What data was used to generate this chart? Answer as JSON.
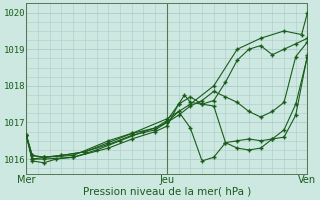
{
  "xlabel": "Pression niveau de la mer( hPa )",
  "bg_color": "#cce8e0",
  "grid_color": "#aacccc",
  "line_color": "#1a5c1a",
  "ylim": [
    1015.6,
    1020.25
  ],
  "xlim": [
    0,
    48
  ],
  "yticks": [
    1016,
    1017,
    1018,
    1019,
    1020
  ],
  "xtick_labels": [
    "Mer",
    "Jeu",
    "Ven"
  ],
  "xtick_positions": [
    0,
    24,
    48
  ],
  "series_waypoints": [
    [
      [
        0,
        1016.65
      ],
      [
        1,
        1016.0
      ],
      [
        3,
        1016.05
      ],
      [
        8,
        1016.1
      ],
      [
        14,
        1016.5
      ],
      [
        18,
        1016.7
      ],
      [
        24,
        1017.1
      ],
      [
        28,
        1017.5
      ],
      [
        32,
        1018.0
      ],
      [
        36,
        1019.0
      ],
      [
        40,
        1019.3
      ],
      [
        44,
        1019.5
      ],
      [
        47,
        1019.4
      ],
      [
        48,
        1020.0
      ]
    ],
    [
      [
        0,
        1016.65
      ],
      [
        1,
        1016.0
      ],
      [
        3,
        1016.0
      ],
      [
        8,
        1016.05
      ],
      [
        14,
        1016.3
      ],
      [
        18,
        1016.55
      ],
      [
        22,
        1016.75
      ],
      [
        24,
        1016.9
      ],
      [
        26,
        1017.5
      ],
      [
        28,
        1017.7
      ],
      [
        30,
        1017.5
      ],
      [
        32,
        1017.6
      ],
      [
        34,
        1018.1
      ],
      [
        36,
        1018.7
      ],
      [
        38,
        1019.0
      ],
      [
        40,
        1019.1
      ],
      [
        42,
        1018.85
      ],
      [
        44,
        1019.0
      ],
      [
        46,
        1019.15
      ],
      [
        48,
        1019.3
      ]
    ],
    [
      [
        0,
        1016.65
      ],
      [
        1,
        1015.95
      ],
      [
        3,
        1015.9
      ],
      [
        5,
        1016.0
      ],
      [
        8,
        1016.05
      ],
      [
        12,
        1016.25
      ],
      [
        16,
        1016.5
      ],
      [
        20,
        1016.75
      ],
      [
        22,
        1016.85
      ],
      [
        24,
        1017.05
      ],
      [
        26,
        1017.5
      ],
      [
        27,
        1017.75
      ],
      [
        28,
        1017.55
      ],
      [
        30,
        1017.5
      ],
      [
        32,
        1017.45
      ],
      [
        34,
        1016.45
      ],
      [
        36,
        1016.3
      ],
      [
        38,
        1016.25
      ],
      [
        40,
        1016.3
      ],
      [
        42,
        1016.55
      ],
      [
        44,
        1016.8
      ],
      [
        46,
        1017.5
      ],
      [
        48,
        1018.8
      ]
    ],
    [
      [
        0,
        1016.65
      ],
      [
        1,
        1016.1
      ],
      [
        3,
        1016.05
      ],
      [
        6,
        1016.1
      ],
      [
        10,
        1016.2
      ],
      [
        14,
        1016.4
      ],
      [
        18,
        1016.65
      ],
      [
        22,
        1016.8
      ],
      [
        24,
        1017.0
      ],
      [
        26,
        1017.3
      ],
      [
        28,
        1016.85
      ],
      [
        30,
        1015.95
      ],
      [
        32,
        1016.05
      ],
      [
        34,
        1016.45
      ],
      [
        36,
        1016.5
      ],
      [
        38,
        1016.55
      ],
      [
        40,
        1016.5
      ],
      [
        42,
        1016.55
      ],
      [
        44,
        1016.6
      ],
      [
        46,
        1017.2
      ],
      [
        48,
        1018.85
      ]
    ],
    [
      [
        0,
        1016.65
      ],
      [
        1,
        1016.1
      ],
      [
        3,
        1016.05
      ],
      [
        6,
        1016.1
      ],
      [
        10,
        1016.2
      ],
      [
        14,
        1016.45
      ],
      [
        18,
        1016.7
      ],
      [
        22,
        1016.85
      ],
      [
        24,
        1017.0
      ],
      [
        26,
        1017.2
      ],
      [
        28,
        1017.45
      ],
      [
        30,
        1017.6
      ],
      [
        32,
        1017.85
      ],
      [
        34,
        1017.7
      ],
      [
        36,
        1017.55
      ],
      [
        38,
        1017.3
      ],
      [
        40,
        1017.15
      ],
      [
        42,
        1017.3
      ],
      [
        44,
        1017.55
      ],
      [
        46,
        1018.8
      ],
      [
        48,
        1019.2
      ]
    ]
  ]
}
